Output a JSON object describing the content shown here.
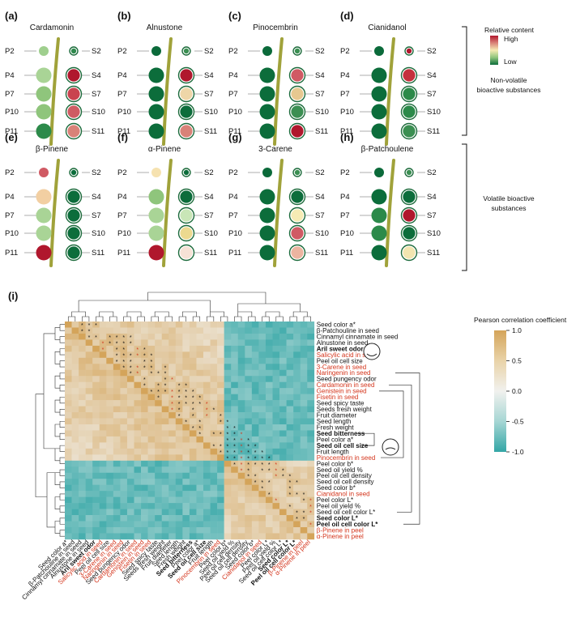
{
  "panels": [
    {
      "id": "(a)",
      "title": "Cardamonin",
      "colors": {
        "P2": "#9fcf8e",
        "S2": "#2f8a4d",
        "P4": "#a9d496",
        "S4": "#b0172d",
        "P7": "#8fc57c",
        "S7": "#c9434f",
        "P10": "#8fc57c",
        "S10": "#cf5c63",
        "P11": "#2c8a4a",
        "S11": "#d98278"
      }
    },
    {
      "id": "(b)",
      "title": "Alnustone",
      "colors": {
        "P2": "#0b6a3a",
        "S2": "#3b8f52",
        "P4": "#0c6d3b",
        "S4": "#b0172d",
        "P7": "#0c6d3b",
        "S7": "#eed6a8",
        "P10": "#0c6d3b",
        "S10": "#0c6d3b",
        "P11": "#0c6d3b",
        "S11": "#d98278"
      }
    },
    {
      "id": "(c)",
      "title": "Pinocembrin",
      "colors": {
        "P2": "#0b6a3a",
        "S2": "#3b8f52",
        "P4": "#0c6d3b",
        "S4": "#d05a64",
        "P7": "#0c6d3b",
        "S7": "#e7c890",
        "P10": "#0c6d3b",
        "S10": "#3b8f52",
        "P11": "#0c6d3b",
        "S11": "#b0172d"
      }
    },
    {
      "id": "(d)",
      "title": "Cianidanol",
      "colors": {
        "P2": "#0b6a3a",
        "S2": "#b0172d",
        "P4": "#0c6d3b",
        "S4": "#c5303d",
        "P7": "#0c6d3b",
        "S7": "#2c8a4a",
        "P10": "#0c6d3b",
        "S10": "#2c8a4a",
        "P11": "#0c6d3b",
        "S11": "#3b8f52"
      }
    },
    {
      "id": "(e)",
      "title": "β-Pinene",
      "colors": {
        "P2": "#d05a64",
        "S2": "#0c6d3b",
        "P4": "#f2cfa2",
        "S4": "#0c6d3b",
        "P7": "#a9d496",
        "S7": "#0c6d3b",
        "P10": "#a9d496",
        "S10": "#0c6d3b",
        "P11": "#b0172d",
        "S11": "#0c6d3b"
      }
    },
    {
      "id": "(f)",
      "title": "α-Pinene",
      "colors": {
        "P2": "#f6e2b0",
        "S2": "#0c6d3b",
        "P4": "#8fc57c",
        "S4": "#0c6d3b",
        "P7": "#a9d496",
        "S7": "#c9e6b7",
        "P10": "#a9d496",
        "S10": "#ecd98f",
        "P11": "#b0172d",
        "S11": "#f6e2d6"
      }
    },
    {
      "id": "(g)",
      "title": "3-Carene",
      "colors": {
        "P2": "#0b6a3a",
        "S2": "#3b8f52",
        "P4": "#0c6d3b",
        "S4": "#0c6d3b",
        "P7": "#0c6d3b",
        "S7": "#f6ebb4",
        "P10": "#0c6d3b",
        "S10": "#d05a64",
        "P11": "#0c6d3b",
        "S11": "#ecb4a0"
      }
    },
    {
      "id": "(h)",
      "title": "β-Patchoulene",
      "colors": {
        "P2": "#0b6a3a",
        "S2": "#3b8f52",
        "P4": "#0c6d3b",
        "S4": "#0c6d3b",
        "P7": "#2c8a4a",
        "S7": "#b0172d",
        "P10": "#2c8a4a",
        "S10": "#0c6d3b",
        "P11": "#0c6d3b",
        "S11": "#f2e5b0"
      }
    }
  ],
  "stage_labels": {
    "left": [
      "P2",
      "P4",
      "P7",
      "P10",
      "P11"
    ],
    "right": [
      "S2",
      "S4",
      "S7",
      "S10",
      "S11"
    ]
  },
  "legend_top": {
    "title": "Relative content",
    "high": "High",
    "low": "Low",
    "colors": [
      "#b0172d",
      "#d98278",
      "#f6ebb4",
      "#8fc57c",
      "#0c6d3b"
    ]
  },
  "group_labels": {
    "non_volatile": "Non-volatile bioactive substances",
    "volatile": "Volatile bioactive substances"
  },
  "heatmap": {
    "panel_label": "(i)",
    "legend_title": "Pearson correlation coefficient",
    "legend_ticks": [
      "1.0",
      "0.5",
      "0.0",
      "-0.5",
      "-1.0"
    ],
    "rows": [
      {
        "label": "Seed color a*",
        "color": "#111111",
        "bold": false
      },
      {
        "label": "β-Patchouline in seed",
        "color": "#111111",
        "bold": false
      },
      {
        "label": "Cinnamyl cinnamate in seed",
        "color": "#111111",
        "bold": false
      },
      {
        "label": "Alnustone in seed",
        "color": "#111111",
        "bold": false
      },
      {
        "label": "Aril sweet odor",
        "color": "#111111",
        "bold": true
      },
      {
        "label": "Salicylic acid in seed",
        "color": "#d4351c",
        "bold": false
      },
      {
        "label": "Peel oil cell size",
        "color": "#111111",
        "bold": false
      },
      {
        "label": "3-Carene in seed",
        "color": "#d4351c",
        "bold": false
      },
      {
        "label": "Naringenin in seed",
        "color": "#d4351c",
        "bold": false
      },
      {
        "label": "Seed pungency odor",
        "color": "#111111",
        "bold": false
      },
      {
        "label": "Cardamonin in seed",
        "color": "#d4351c",
        "bold": false
      },
      {
        "label": "Genistein in seed",
        "color": "#d4351c",
        "bold": false
      },
      {
        "label": "Fisetin in seed",
        "color": "#d4351c",
        "bold": false
      },
      {
        "label": "Seed spicy taste",
        "color": "#111111",
        "bold": false
      },
      {
        "label": "Seeds fresh weight",
        "color": "#111111",
        "bold": false
      },
      {
        "label": "Fruit diameter",
        "color": "#111111",
        "bold": false
      },
      {
        "label": "Seed length",
        "color": "#111111",
        "bold": false
      },
      {
        "label": "Fresh weight",
        "color": "#111111",
        "bold": false
      },
      {
        "label": "Seed bitterness",
        "color": "#111111",
        "bold": true
      },
      {
        "label": "Peel color a*",
        "color": "#111111",
        "bold": false
      },
      {
        "label": "Seed oil cell size",
        "color": "#111111",
        "bold": true
      },
      {
        "label": "Fruit length",
        "color": "#111111",
        "bold": false
      },
      {
        "label": "Pinocembrin in seed",
        "color": "#d4351c",
        "bold": false
      },
      {
        "label": "Peel color b*",
        "color": "#111111",
        "bold": false
      },
      {
        "label": "Seed oil yield %",
        "color": "#111111",
        "bold": false
      },
      {
        "label": "Peel oil cell density",
        "color": "#111111",
        "bold": false
      },
      {
        "label": "Seed oil cell density",
        "color": "#111111",
        "bold": false
      },
      {
        "label": "Seed color b*",
        "color": "#111111",
        "bold": false
      },
      {
        "label": "Cianidanol in seed",
        "color": "#d4351c",
        "bold": false
      },
      {
        "label": "Peel color L*",
        "color": "#111111",
        "bold": false
      },
      {
        "label": "Peel oil yield %",
        "color": "#111111",
        "bold": false
      },
      {
        "label": "Seed oil cell color L*",
        "color": "#111111",
        "bold": false
      },
      {
        "label": "Seed color L*",
        "color": "#111111",
        "bold": true
      },
      {
        "label": "Peel oil cell color L*",
        "color": "#111111",
        "bold": true
      },
      {
        "label": "β-Pinene in peel",
        "color": "#d4351c",
        "bold": false
      },
      {
        "label": "α-Pinene in peel",
        "color": "#d4351c",
        "bold": false
      }
    ],
    "bottom_labels": [
      "Seed color a*",
      "β-Patchouline in seed",
      "Cinnamyl cinnamate in seed",
      "Alnustone in seed",
      "Aril sweet odor",
      "Salicylic acid in seed",
      "Peel oil cell size",
      "3-Carene in seed",
      "Naringenin in seed",
      "Seed pungency odor",
      "Cardamonin in seed",
      "Genistein in seed",
      "Fisetin in seed",
      "Seed spicy taste",
      "Seeds fresh weight",
      "Fruit diameter",
      "Seed length",
      "Fresh weight",
      "Seed bitterness",
      "Peel color a*",
      "Seed oil cell size",
      "Fruit length",
      "Pinocembrin in seed",
      "Peel color b*",
      "Seed oil yield %",
      "Peel oil cell density",
      "Seed oil cell density",
      "Seed color b*",
      "Cianidanol in seed",
      "Peel color L*",
      "Peel oil yield %",
      "Seed oil cell color L*",
      "Seed color L*",
      "Peel oil cell color L*",
      "β-Pinene in peel",
      "α-Pinene in peel"
    ],
    "marker": "*"
  },
  "colors": {
    "pos": "#d4a45a",
    "neg": "#33a6a6",
    "stem": "#a0a23a"
  }
}
